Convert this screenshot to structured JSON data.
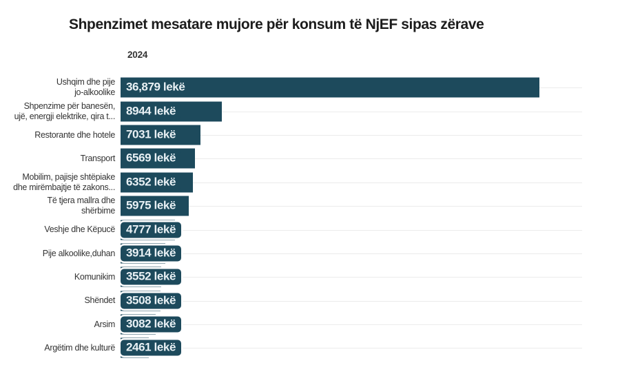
{
  "header": {
    "title": "Shpenzimet mesatare mujore për konsum të NjEF sipas zërave",
    "year": "2024"
  },
  "chart_data": {
    "type": "bar",
    "orientation": "horizontal",
    "title": "Shpenzimet mesatare mujore për konsum të NjEF sipas zërave",
    "series_label": "2024",
    "unit": "lekë",
    "categories": [
      "Ushqim dhe pije jo-alkoolike",
      "Shpenzime për banesën, ujë, energji elektrike, qira t...",
      "Restorante dhe hotele",
      "Transport",
      "Mobilim, pajisje shtëpiake dhe mirëmbajtje të zakons...",
      "Të tjera mallra dhe shërbime",
      "Veshje dhe Këpucë",
      "Pije alkoolike,duhan",
      "Komunikim",
      "Shëndet",
      "Arsim",
      "Argëtim dhe kulturë"
    ],
    "category_lines": [
      [
        "Ushqim dhe pije",
        "jo-alkoolike"
      ],
      [
        "Shpenzime për banesën,",
        "ujë, energji elektrike, qira t..."
      ],
      [
        "Restorante dhe hotele"
      ],
      [
        "Transport"
      ],
      [
        "Mobilim, pajisje shtëpiake",
        "dhe mirëmbajtje të zakons..."
      ],
      [
        "Të tjera mallra dhe",
        "shërbime"
      ],
      [
        "Veshje dhe Këpucë"
      ],
      [
        "Pije alkoolike,duhan"
      ],
      [
        "Komunikim"
      ],
      [
        "Shëndet"
      ],
      [
        "Arsim"
      ],
      [
        "Argëtim dhe kulturë"
      ]
    ],
    "values": [
      36879,
      8944,
      7031,
      6569,
      6352,
      5975,
      4777,
      3914,
      3552,
      3508,
      3082,
      2461
    ],
    "value_labels": [
      "36,879 lekë",
      "8944 lekë",
      "7031 lekë",
      "6569 lekë",
      "6352 lekë",
      "5975 lekë",
      "4777 lekë",
      "3914 lekë",
      "3552 lekë",
      "3508 lekë",
      "3082 lekë",
      "2461 lekë"
    ],
    "xlim": [
      0,
      36879
    ],
    "grid": true,
    "legend_position": "none",
    "bar_color": "#1d4a5c",
    "value_text_color": "#e9f1f5",
    "gridline_color": "#ebebeb",
    "title_color": "#1c1c1c",
    "label_color": "#333333"
  }
}
